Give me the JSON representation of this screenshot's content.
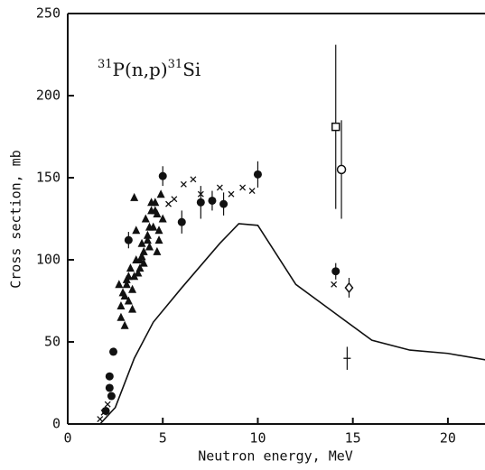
{
  "chart_data": {
    "type": "scatter",
    "annotation": [
      "31",
      "P(n,p)",
      "31",
      "Si"
    ],
    "xlabel": "Neutron energy, MeV",
    "ylabel": "Cross section, mb",
    "xlim": [
      0,
      22
    ],
    "ylim": [
      0,
      250
    ],
    "xticks": [
      0,
      5,
      10,
      15,
      20
    ],
    "yticks": [
      0,
      50,
      100,
      150,
      200,
      250
    ],
    "color": "#111111",
    "line": {
      "x": [
        1.7,
        2.5,
        3.5,
        4.5,
        6,
        8,
        9,
        10,
        12,
        14,
        16,
        18,
        20,
        22
      ],
      "values": [
        0,
        10,
        40,
        62,
        83,
        110,
        122,
        121,
        85,
        68,
        51,
        45,
        43,
        39
      ]
    },
    "series": [
      {
        "marker": "circle",
        "x": [
          2.0,
          2.2,
          2.2,
          2.3,
          2.4,
          3.2,
          5.0,
          6.0,
          7.0,
          7.6,
          8.2,
          10.0,
          14.1
        ],
        "values": [
          8,
          22,
          29,
          17,
          44,
          112,
          151,
          123,
          135,
          136,
          134,
          152,
          93
        ],
        "errors": [
          null,
          null,
          null,
          null,
          null,
          5,
          6,
          7,
          10,
          6,
          7,
          8,
          5
        ]
      },
      {
        "marker": "cross",
        "x": [
          1.7,
          1.9,
          2.1,
          5.3,
          5.6,
          6.1,
          6.6,
          7.0,
          8.0,
          8.6,
          9.2,
          9.7,
          14.0
        ],
        "values": [
          3,
          7,
          12,
          134,
          137,
          146,
          149,
          140,
          144,
          140,
          144,
          142,
          85
        ]
      },
      {
        "marker": "triangle",
        "x": [
          2.7,
          2.8,
          2.9,
          3.0,
          3.1,
          3.2,
          3.3,
          3.4,
          3.5,
          3.6,
          3.7,
          3.8,
          3.9,
          4.0,
          4.1,
          4.2,
          4.3,
          4.4,
          4.5,
          4.6,
          4.7,
          4.8,
          4.9,
          5.0,
          2.8,
          3.0,
          3.2,
          3.4,
          3.6,
          3.8,
          4.0,
          4.2,
          4.4,
          4.6,
          4.8,
          3.1,
          3.5,
          3.9,
          4.3,
          4.7
        ],
        "values": [
          85,
          72,
          80,
          60,
          88,
          75,
          95,
          70,
          138,
          118,
          92,
          100,
          110,
          105,
          125,
          115,
          108,
          130,
          120,
          135,
          128,
          112,
          140,
          125,
          65,
          78,
          90,
          82,
          100,
          95,
          98,
          112,
          135,
          130,
          118,
          85,
          90,
          102,
          120,
          105
        ]
      },
      {
        "marker": "square",
        "x": [
          14.1
        ],
        "values": [
          181
        ],
        "errors": [
          50
        ]
      },
      {
        "marker": "open-circle",
        "x": [
          14.4
        ],
        "values": [
          155
        ],
        "errors": [
          30
        ]
      },
      {
        "marker": "diamond",
        "x": [
          14.8
        ],
        "values": [
          83
        ],
        "errors": [
          6
        ]
      },
      {
        "marker": "plus",
        "x": [
          14.7
        ],
        "values": [
          40
        ],
        "errors": [
          7
        ]
      }
    ]
  }
}
